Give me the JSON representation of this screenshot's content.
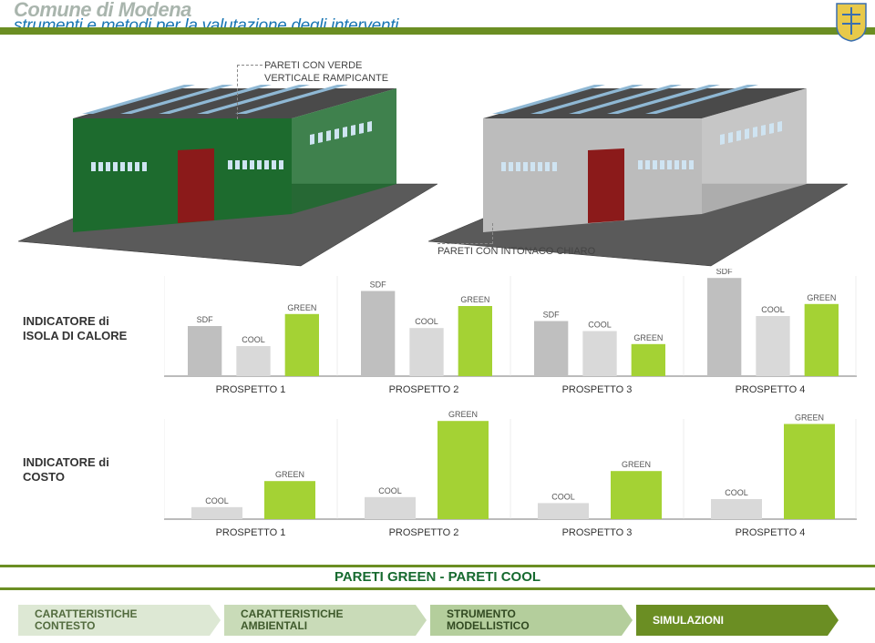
{
  "header": {
    "title": "Comune di Modena",
    "subtitle": "strumenti e metodi per la valutazione degli interventi",
    "separator_color": "#6b8e23",
    "crest_primary": "#e8c94a",
    "crest_secondary": "#3a6fb0"
  },
  "illustration": {
    "callout_left_l1": "PARETI CON VERDE",
    "callout_left_l2": "VERTICALE RAMPICANTE",
    "callout_right": "PARETI CON INTONACO CHIARO",
    "ground_color": "#5a5a5a",
    "roof_color": "#4a4a4a",
    "sky_band_color": "#8fb8d4",
    "wall_green": "#1d6b2e",
    "wall_gray": "#bcbcbc",
    "door_color": "#8b1a1a",
    "window_color": "#cfe4f2"
  },
  "indicators": {
    "label1_l1": "INDICATORE di",
    "label1_l2": "ISOLA DI CALORE",
    "label2_l1": "INDICATORE di",
    "label2_l2": "COSTO"
  },
  "charts": {
    "type": "bar",
    "colors": {
      "SDF": "#bfbfbf",
      "COOL": "#d9d9d9",
      "GREEN": "#a4d234"
    },
    "axis_color": "#777777",
    "label_fontsize": 9,
    "title_fontsize": 11,
    "title_color": "#333333",
    "row1": {
      "ylim": [
        0,
        100
      ],
      "prospetti": [
        {
          "title": "PROSPETTO 1",
          "bars": [
            {
              "label": "SDF",
              "v": 50
            },
            {
              "label": "COOL",
              "v": 30
            },
            {
              "label": "GREEN",
              "v": 62
            }
          ]
        },
        {
          "title": "PROSPETTO 2",
          "bars": [
            {
              "label": "SDF",
              "v": 85
            },
            {
              "label": "COOL",
              "v": 48
            },
            {
              "label": "GREEN",
              "v": 70
            }
          ]
        },
        {
          "title": "PROSPETTO 3",
          "bars": [
            {
              "label": "SDF",
              "v": 55
            },
            {
              "label": "COOL",
              "v": 45
            },
            {
              "label": "GREEN",
              "v": 32
            }
          ]
        },
        {
          "title": "PROSPETTO 4",
          "bars": [
            {
              "label": "SDF",
              "v": 98
            },
            {
              "label": "COOL",
              "v": 60
            },
            {
              "label": "GREEN",
              "v": 72
            }
          ]
        }
      ]
    },
    "row2": {
      "ylim": [
        0,
        100
      ],
      "prospetti": [
        {
          "title": "PROSPETTO 1",
          "bars": [
            {
              "label": "COOL",
              "v": 12
            },
            {
              "label": "GREEN",
              "v": 38
            }
          ]
        },
        {
          "title": "PROSPETTO 2",
          "bars": [
            {
              "label": "COOL",
              "v": 22
            },
            {
              "label": "GREEN",
              "v": 98
            }
          ]
        },
        {
          "title": "PROSPETTO 3",
          "bars": [
            {
              "label": "COOL",
              "v": 16
            },
            {
              "label": "GREEN",
              "v": 48
            }
          ]
        },
        {
          "title": "PROSPETTO 4",
          "bars": [
            {
              "label": "COOL",
              "v": 20
            },
            {
              "label": "GREEN",
              "v": 95
            }
          ]
        }
      ]
    }
  },
  "bottom_title": "PARETI GREEN - PARETI COOL",
  "footer": {
    "step1_l1": "CARATTERISTICHE",
    "step1_l2": "CONTESTO",
    "step2_l1": "CARATTERISTICHE",
    "step2_l2": "AMBIENTALI",
    "step3_l1": "STRUMENTO",
    "step3_l2": "MODELLISTICO",
    "step4": "SIMULAZIONI"
  }
}
